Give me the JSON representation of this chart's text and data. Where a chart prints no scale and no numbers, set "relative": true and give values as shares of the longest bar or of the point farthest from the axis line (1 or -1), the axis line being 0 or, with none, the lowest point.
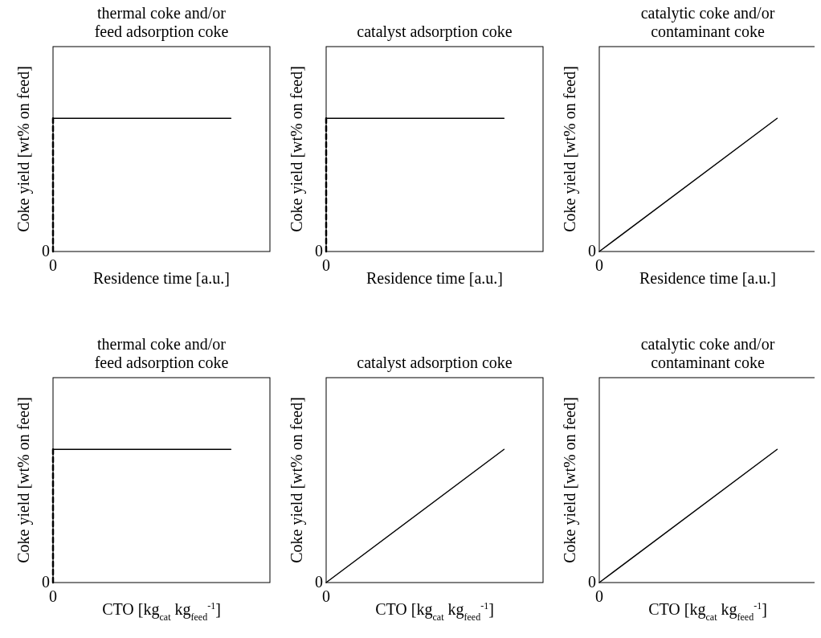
{
  "chart_data": [
    {
      "type": "line",
      "title": "thermal coke and/or\nfeed adsorption coke",
      "xlabel": "Residence time [a.u.]",
      "ylabel": "Coke yield [wt% on feed]",
      "relative": true,
      "annotations": [
        "0",
        "0"
      ],
      "categories": [
        null,
        null
      ],
      "series": [
        {
          "x": [
            null,
            null
          ],
          "values": [
            0,
            1
          ],
          "color": "#000000",
          "line_style": "dashed"
        },
        {
          "values": [
            1,
            1
          ],
          "color": "#000000",
          "line_style": "solid"
        }
      ]
    },
    {
      "type": "line",
      "title": "catalyst adsorption coke",
      "xlabel": "Residence time [a.u.]",
      "ylabel": "Coke yield [wt% on feed]",
      "relative": true,
      "annotations": [
        "0",
        "0"
      ],
      "categories": [
        null,
        null
      ],
      "series": [
        {
          "x": [
            null,
            null
          ],
          "values": [
            0,
            1
          ],
          "color": "#000000",
          "line_style": "dashed"
        },
        {
          "values": [
            1,
            1
          ],
          "color": "#000000",
          "line_style": "solid"
        }
      ]
    },
    {
      "type": "line",
      "title": "catalytic coke and/or\ncontaminant coke",
      "xlabel": "Residence time [a.u.]",
      "ylabel": "Coke yield [wt% on feed]",
      "relative": true,
      "annotations": [
        "0",
        "0"
      ],
      "categories": [
        null,
        null
      ],
      "series": [
        {
          "values": [
            0,
            1
          ],
          "color": "#000000",
          "line_style": "solid"
        }
      ]
    },
    {
      "type": "line",
      "title": "thermal coke and/or\nfeed adsorption coke",
      "xlabel": "CTO [kg$_{cat}$ kg$_{feed}$$^{-1}$]",
      "ylabel": "Coke yield [wt% on feed]",
      "relative": true,
      "annotations": [
        "0",
        "0"
      ],
      "categories": [
        null,
        null
      ],
      "series": [
        {
          "x": [
            null,
            null
          ],
          "values": [
            0,
            1
          ],
          "color": "#000000",
          "line_style": "dashed"
        },
        {
          "values": [
            1,
            1
          ],
          "color": "#000000",
          "line_style": "solid"
        }
      ]
    },
    {
      "type": "line",
      "title": "catalyst adsorption coke",
      "xlabel": "CTO [kg$_{cat}$ kg$_{feed}$$^{-1}$]",
      "ylabel": "Coke yield [wt% on feed]",
      "relative": true,
      "annotations": [
        "0",
        "0"
      ],
      "categories": [
        null,
        null
      ],
      "series": [
        {
          "values": [
            0,
            1
          ],
          "color": "#000000",
          "line_style": "solid"
        }
      ]
    },
    {
      "type": "line",
      "title": "catalytic coke and/or\ncontaminant coke",
      "xlabel": "CTO [kg$_{cat}$ kg$_{feed}$$^{-1}$]",
      "ylabel": "Coke yield [wt% on feed]",
      "relative": true,
      "annotations": [
        "0",
        "0"
      ],
      "categories": [
        null,
        null
      ],
      "series": [
        {
          "values": [
            0,
            1
          ],
          "color": "#000000",
          "line_style": "solid"
        }
      ]
    }
  ]
}
